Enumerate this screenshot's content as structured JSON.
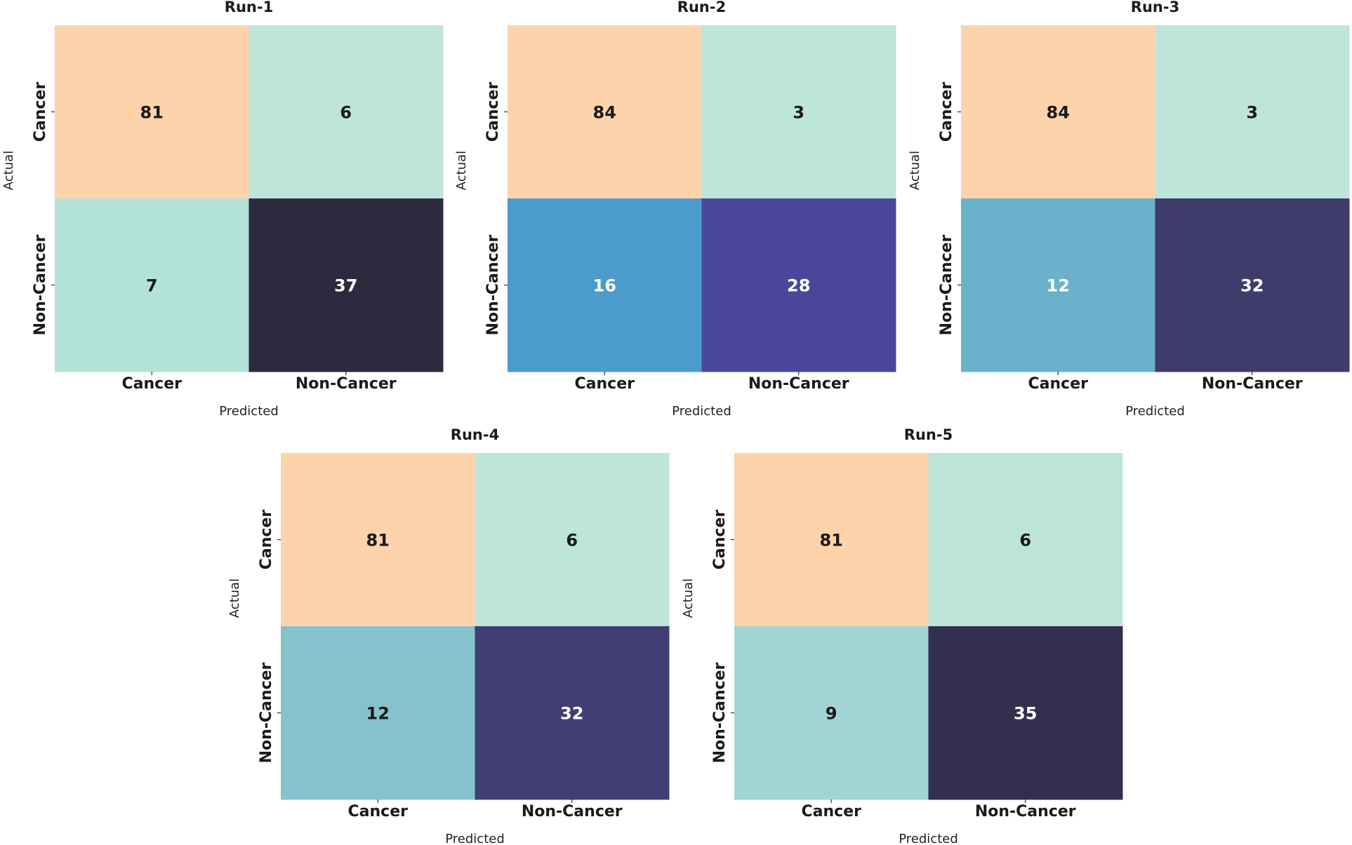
{
  "chart_data": [
    {
      "type": "heatmap",
      "title": "Run-1",
      "xlabel": "Predicted",
      "ylabel": "Actual",
      "x_categories": [
        "Cancer",
        "Non-Cancer"
      ],
      "y_categories": [
        "Cancer",
        "Non-Cancer"
      ],
      "values": [
        [
          81,
          6
        ],
        [
          7,
          37
        ]
      ],
      "cell_colors": [
        [
          "#fdd3ab",
          "#bee5da"
        ],
        [
          "#b3e2d9",
          "#2c2a3e"
        ]
      ],
      "text_colors": [
        [
          "#1a1a1a",
          "#1a1a1a"
        ],
        [
          "#1a1a1a",
          "#ffffff"
        ]
      ]
    },
    {
      "type": "heatmap",
      "title": "Run-2",
      "xlabel": "Predicted",
      "ylabel": "Actual",
      "x_categories": [
        "Cancer",
        "Non-Cancer"
      ],
      "y_categories": [
        "Cancer",
        "Non-Cancer"
      ],
      "values": [
        [
          84,
          3
        ],
        [
          16,
          28
        ]
      ],
      "cell_colors": [
        [
          "#fdd3ab",
          "#bee5da"
        ],
        [
          "#4b9bcc",
          "#49479a"
        ]
      ],
      "text_colors": [
        [
          "#1a1a1a",
          "#1a1a1a"
        ],
        [
          "#ffffff",
          "#ffffff"
        ]
      ]
    },
    {
      "type": "heatmap",
      "title": "Run-3",
      "xlabel": "Predicted",
      "ylabel": "Actual",
      "x_categories": [
        "Cancer",
        "Non-Cancer"
      ],
      "y_categories": [
        "Cancer",
        "Non-Cancer"
      ],
      "values": [
        [
          84,
          3
        ],
        [
          12,
          32
        ]
      ],
      "cell_colors": [
        [
          "#fdd3ab",
          "#bee5da"
        ],
        [
          "#6ab2cb",
          "#3f3c6c"
        ]
      ],
      "text_colors": [
        [
          "#1a1a1a",
          "#1a1a1a"
        ],
        [
          "#ffffff",
          "#ffffff"
        ]
      ]
    },
    {
      "type": "heatmap",
      "title": "Run-4",
      "xlabel": "Predicted",
      "ylabel": "Actual",
      "x_categories": [
        "Cancer",
        "Non-Cancer"
      ],
      "y_categories": [
        "Cancer",
        "Non-Cancer"
      ],
      "values": [
        [
          81,
          6
        ],
        [
          12,
          32
        ]
      ],
      "cell_colors": [
        [
          "#fdd3ab",
          "#bee5da"
        ],
        [
          "#86c1ce",
          "#403e74"
        ]
      ],
      "text_colors": [
        [
          "#1a1a1a",
          "#1a1a1a"
        ],
        [
          "#1a1a1a",
          "#ffffff"
        ]
      ]
    },
    {
      "type": "heatmap",
      "title": "Run-5",
      "xlabel": "Predicted",
      "ylabel": "Actual",
      "x_categories": [
        "Cancer",
        "Non-Cancer"
      ],
      "y_categories": [
        "Cancer",
        "Non-Cancer"
      ],
      "values": [
        [
          81,
          6
        ],
        [
          9,
          35
        ]
      ],
      "cell_colors": [
        [
          "#fdd3ab",
          "#bee5da"
        ],
        [
          "#a1d4d5",
          "#33304f"
        ]
      ],
      "text_colors": [
        [
          "#1a1a1a",
          "#1a1a1a"
        ],
        [
          "#1a1a1a",
          "#ffffff"
        ]
      ]
    }
  ]
}
